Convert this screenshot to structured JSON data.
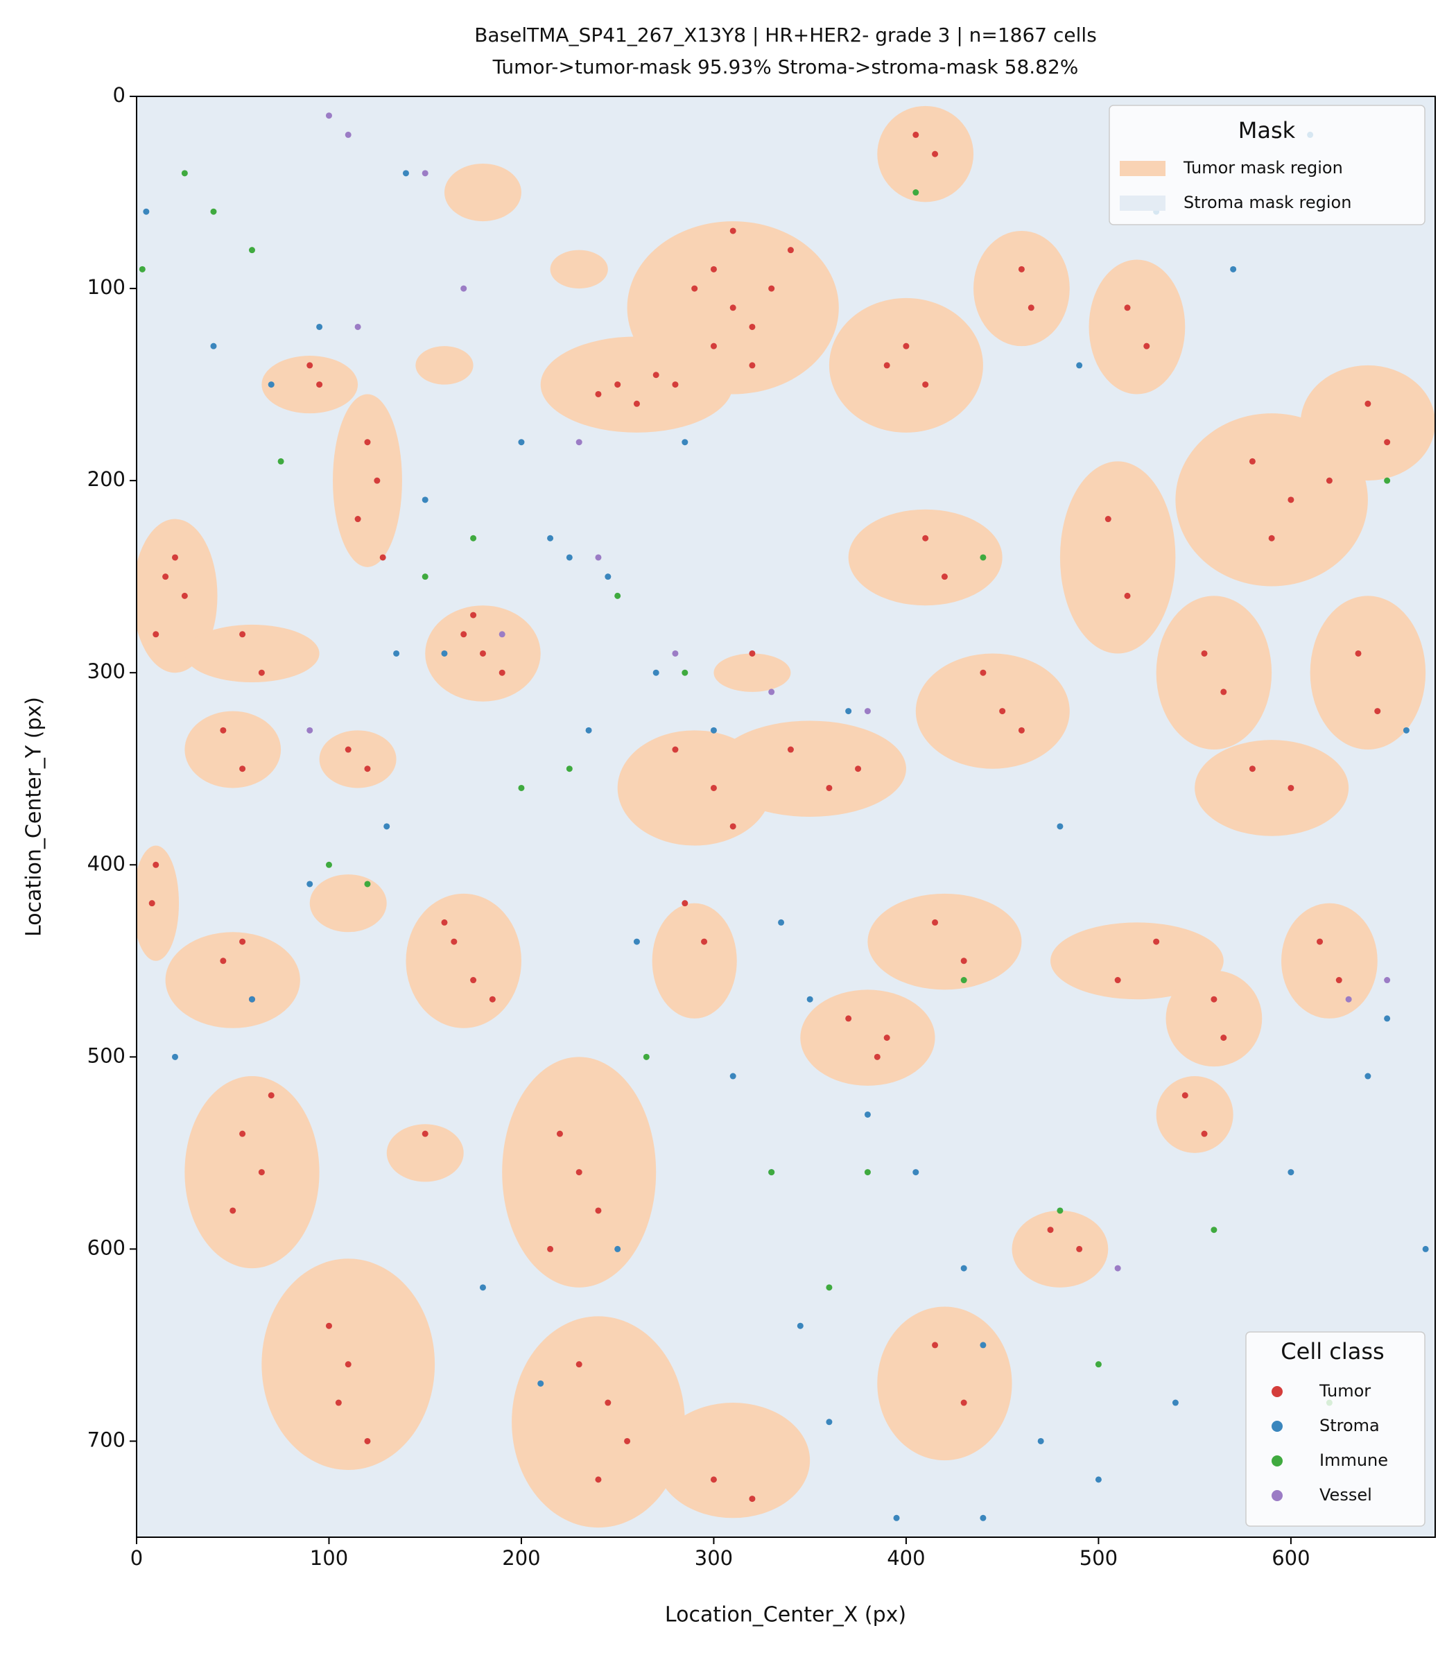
{
  "chart_data": {
    "type": "scatter",
    "title": "BaselTMA_SP41_267_X13Y8  |  HR+HER2-  grade 3  |  n=1867 cells",
    "subtitle": "Tumor->tumor-mask 95.93%   Stroma->stroma-mask 58.82%",
    "xlabel": "Location_Center_X (px)",
    "ylabel": "Location_Center_Y (px)",
    "xlim": [
      0,
      675
    ],
    "ylim": [
      0,
      750
    ],
    "y_inverted": true,
    "xticks": [
      0,
      100,
      200,
      300,
      400,
      500,
      600
    ],
    "yticks": [
      0,
      100,
      200,
      300,
      400,
      500,
      600,
      700
    ],
    "mask": {
      "title": "Mask",
      "loc": "upper right",
      "regions": [
        {
          "name": "Tumor mask region",
          "color": "#f9d3b4",
          "blobs": [
            [
              310,
              110,
              55,
              45
            ],
            [
              260,
              150,
              50,
              25
            ],
            [
              120,
              200,
              18,
              45
            ],
            [
              90,
              150,
              25,
              15
            ],
            [
              20,
              260,
              22,
              40
            ],
            [
              180,
              290,
              30,
              25
            ],
            [
              60,
              290,
              35,
              15
            ],
            [
              50,
              340,
              25,
              20
            ],
            [
              115,
              345,
              20,
              15
            ],
            [
              10,
              420,
              12,
              30
            ],
            [
              50,
              460,
              35,
              25
            ],
            [
              110,
              420,
              20,
              15
            ],
            [
              170,
              450,
              30,
              35
            ],
            [
              60,
              560,
              35,
              50
            ],
            [
              230,
              560,
              40,
              60
            ],
            [
              150,
              550,
              20,
              15
            ],
            [
              110,
              660,
              45,
              55
            ],
            [
              240,
              690,
              45,
              55
            ],
            [
              310,
              710,
              40,
              30
            ],
            [
              290,
              360,
              40,
              30
            ],
            [
              350,
              350,
              50,
              25
            ],
            [
              290,
              450,
              22,
              30
            ],
            [
              380,
              490,
              35,
              25
            ],
            [
              400,
              140,
              40,
              35
            ],
            [
              410,
              240,
              40,
              25
            ],
            [
              445,
              320,
              40,
              30
            ],
            [
              460,
              100,
              25,
              30
            ],
            [
              520,
              120,
              25,
              35
            ],
            [
              590,
              210,
              50,
              45
            ],
            [
              640,
              170,
              35,
              30
            ],
            [
              510,
              240,
              30,
              50
            ],
            [
              560,
              300,
              30,
              40
            ],
            [
              640,
              300,
              30,
              40
            ],
            [
              590,
              360,
              40,
              25
            ],
            [
              620,
              450,
              25,
              30
            ],
            [
              420,
              440,
              40,
              25
            ],
            [
              520,
              450,
              45,
              20
            ],
            [
              560,
              480,
              25,
              25
            ],
            [
              550,
              530,
              20,
              20
            ],
            [
              480,
              600,
              25,
              20
            ],
            [
              420,
              670,
              35,
              40
            ],
            [
              410,
              30,
              25,
              25
            ],
            [
              320,
              300,
              20,
              10
            ],
            [
              180,
              50,
              20,
              15
            ],
            [
              230,
              90,
              15,
              10
            ],
            [
              160,
              140,
              15,
              10
            ]
          ]
        },
        {
          "name": "Stroma mask region",
          "color": "#e4ecf4"
        }
      ]
    },
    "legend": {
      "title": "Cell class",
      "loc": "lower right"
    },
    "series": [
      {
        "name": "Tumor",
        "color": "#d43d3b",
        "x": [
          290,
          300,
          310,
          320,
          330,
          300,
          320,
          340,
          280,
          310,
          250,
          260,
          240,
          270,
          120,
          125,
          115,
          128,
          90,
          95,
          15,
          25,
          10,
          20,
          170,
          180,
          190,
          175,
          55,
          65,
          45,
          55,
          110,
          120,
          10,
          8,
          45,
          60,
          55,
          165,
          175,
          160,
          185,
          55,
          65,
          50,
          70,
          220,
          230,
          240,
          215,
          150,
          100,
          110,
          120,
          105,
          230,
          245,
          255,
          240,
          300,
          320,
          280,
          300,
          310,
          340,
          360,
          375,
          285,
          295,
          370,
          390,
          385,
          400,
          410,
          390,
          410,
          420,
          440,
          450,
          460,
          460,
          465,
          515,
          525,
          580,
          600,
          620,
          590,
          640,
          650,
          505,
          515,
          555,
          565,
          635,
          645,
          580,
          600,
          615,
          625,
          415,
          430,
          510,
          530,
          560,
          565,
          545,
          555,
          475,
          490,
          415,
          430,
          405,
          415,
          320
        ],
        "y": [
          100,
          90,
          110,
          120,
          100,
          130,
          140,
          80,
          150,
          70,
          150,
          160,
          155,
          145,
          180,
          200,
          220,
          240,
          140,
          150,
          250,
          260,
          280,
          240,
          280,
          290,
          300,
          270,
          280,
          300,
          330,
          350,
          340,
          350,
          400,
          420,
          450,
          470,
          440,
          440,
          460,
          430,
          470,
          540,
          560,
          580,
          520,
          540,
          560,
          580,
          600,
          540,
          640,
          660,
          700,
          680,
          660,
          680,
          700,
          720,
          720,
          730,
          340,
          360,
          380,
          340,
          360,
          350,
          420,
          440,
          480,
          490,
          500,
          130,
          150,
          140,
          230,
          250,
          300,
          320,
          330,
          90,
          110,
          110,
          130,
          190,
          210,
          200,
          230,
          160,
          180,
          220,
          260,
          290,
          310,
          290,
          320,
          350,
          360,
          440,
          460,
          430,
          450,
          460,
          440,
          470,
          490,
          520,
          540,
          590,
          600,
          650,
          680,
          20,
          30,
          290
        ]
      },
      {
        "name": "Stroma",
        "color": "#3a86bd",
        "x": [
          5,
          40,
          70,
          95,
          140,
          150,
          160,
          200,
          215,
          225,
          235,
          245,
          270,
          285,
          300,
          335,
          350,
          370,
          380,
          405,
          430,
          440,
          470,
          480,
          490,
          530,
          570,
          610,
          650,
          670,
          20,
          60,
          90,
          130,
          180,
          210,
          250,
          260,
          310,
          330,
          345,
          360,
          395,
          440,
          500,
          540,
          600,
          640,
          660,
          135
        ],
        "y": [
          60,
          130,
          150,
          120,
          40,
          210,
          290,
          180,
          230,
          240,
          330,
          250,
          300,
          180,
          330,
          430,
          470,
          320,
          530,
          560,
          610,
          650,
          700,
          380,
          140,
          60,
          90,
          20,
          480,
          600,
          500,
          470,
          410,
          380,
          620,
          670,
          600,
          440,
          510,
          560,
          640,
          690,
          740,
          740,
          720,
          680,
          560,
          510,
          330,
          290
        ]
      },
      {
        "name": "Immune",
        "color": "#3faa3f",
        "x": [
          3,
          25,
          40,
          60,
          75,
          100,
          120,
          150,
          175,
          200,
          225,
          250,
          265,
          285,
          330,
          360,
          380,
          405,
          430,
          440,
          480,
          500,
          560,
          620,
          650
        ],
        "y": [
          90,
          40,
          60,
          80,
          190,
          400,
          410,
          250,
          230,
          360,
          350,
          260,
          500,
          300,
          560,
          620,
          560,
          50,
          460,
          240,
          580,
          660,
          590,
          680,
          200
        ]
      },
      {
        "name": "Vessel",
        "color": "#9b7cc5",
        "x": [
          100,
          110,
          150,
          170,
          115,
          90,
          190,
          230,
          240,
          280,
          330,
          380,
          510,
          630,
          650
        ],
        "y": [
          10,
          20,
          40,
          100,
          120,
          330,
          280,
          180,
          240,
          290,
          310,
          320,
          610,
          470,
          460
        ]
      }
    ]
  }
}
